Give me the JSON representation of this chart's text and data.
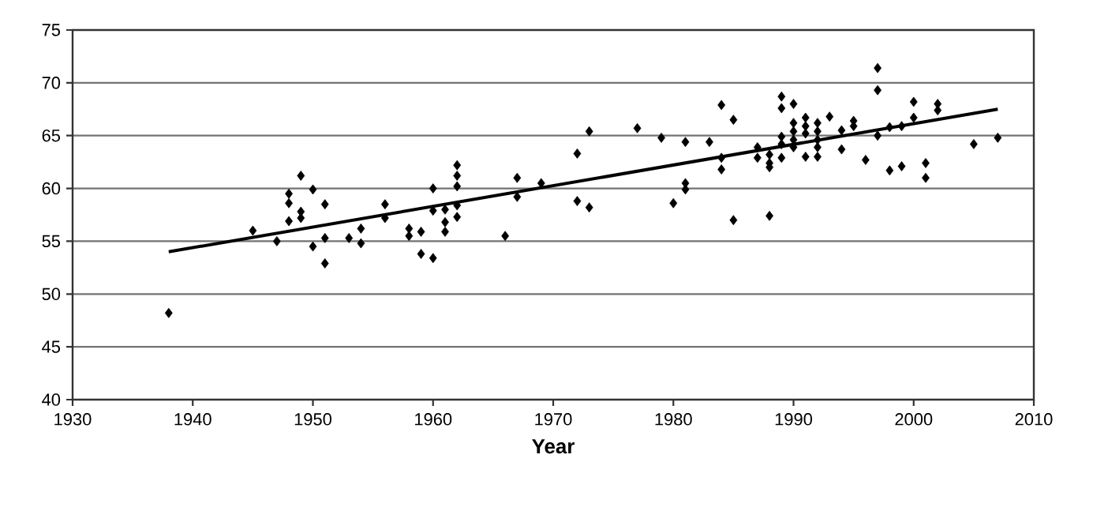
{
  "chart_data": {
    "type": "scatter",
    "xlabel": "Year",
    "xlim": [
      1930,
      2010
    ],
    "ylim": [
      40,
      75
    ],
    "xticks": [
      1930,
      1940,
      1950,
      1960,
      1970,
      1980,
      1990,
      2000,
      2010
    ],
    "yticks": [
      40,
      45,
      50,
      55,
      60,
      65,
      70,
      75
    ],
    "grid": "y",
    "marker": "diamond",
    "series": [
      {
        "color": "#000000",
        "x": [
          1938,
          1945,
          1947,
          1948,
          1948,
          1948,
          1949,
          1949,
          1949,
          1950,
          1950,
          1951,
          1951,
          1951,
          1953,
          1954,
          1954,
          1956,
          1956,
          1958,
          1958,
          1959,
          1959,
          1960,
          1960,
          1960,
          1961,
          1961,
          1961,
          1962,
          1962,
          1962,
          1962,
          1962,
          1966,
          1967,
          1967,
          1969,
          1972,
          1972,
          1973,
          1973,
          1977,
          1979,
          1980,
          1981,
          1981,
          1981,
          1983,
          1984,
          1984,
          1984,
          1985,
          1985,
          1987,
          1987,
          1988,
          1988,
          1988,
          1988,
          1989,
          1989,
          1989,
          1989,
          1989,
          1990,
          1990,
          1990,
          1990,
          1990,
          1991,
          1991,
          1991,
          1991,
          1992,
          1992,
          1992,
          1992,
          1992,
          1993,
          1994,
          1994,
          1995,
          1995,
          1996,
          1997,
          1997,
          1997,
          1998,
          1998,
          1999,
          1999,
          2000,
          2000,
          2001,
          2001,
          2002,
          2002,
          2005,
          2007
        ],
        "values": [
          48.2,
          56.0,
          55.0,
          59.5,
          58.6,
          56.9,
          61.2,
          57.8,
          57.2,
          59.9,
          54.5,
          58.5,
          55.3,
          52.9,
          55.3,
          56.2,
          54.8,
          58.5,
          57.2,
          56.2,
          55.5,
          55.9,
          53.8,
          53.4,
          60.0,
          57.9,
          58.0,
          56.8,
          55.9,
          62.2,
          61.2,
          60.2,
          58.4,
          57.3,
          55.5,
          61.0,
          59.2,
          60.5,
          63.3,
          58.8,
          65.4,
          58.2,
          65.7,
          64.8,
          58.6,
          64.4,
          60.5,
          59.9,
          64.4,
          67.9,
          62.9,
          61.8,
          66.5,
          57.0,
          63.9,
          62.9,
          63.2,
          62.4,
          62.0,
          57.4,
          68.7,
          67.6,
          64.9,
          64.2,
          62.9,
          68.0,
          66.2,
          65.4,
          64.6,
          63.9,
          66.7,
          65.9,
          65.2,
          63.0,
          66.2,
          65.4,
          64.6,
          63.9,
          63.0,
          66.8,
          65.5,
          63.7,
          66.4,
          65.9,
          62.7,
          71.4,
          69.3,
          65.0,
          65.8,
          61.7,
          65.9,
          62.1,
          68.2,
          66.7,
          62.4,
          61.0,
          68.0,
          67.4,
          64.2,
          64.8
        ]
      },
      {
        "type": "line",
        "color": "#000000",
        "marker": "none",
        "x": [
          1938,
          2007
        ],
        "values": [
          54.0,
          67.5
        ]
      }
    ]
  }
}
